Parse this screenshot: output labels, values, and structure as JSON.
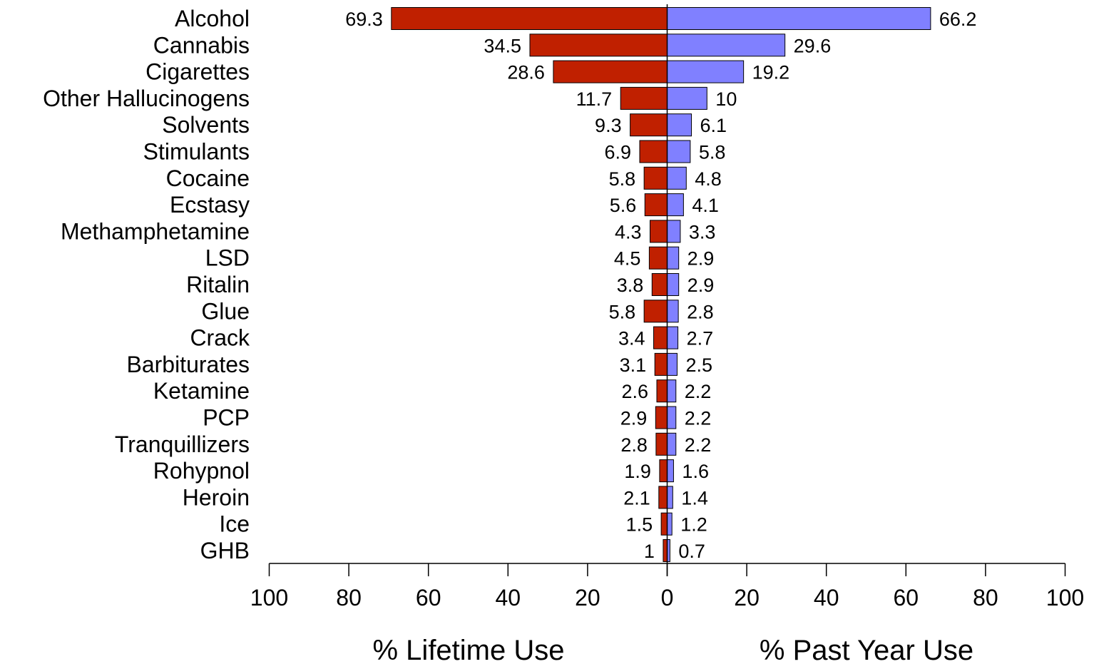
{
  "chart_data": {
    "type": "bar",
    "orientation": "horizontal-back-to-back",
    "categories": [
      "Alcohol",
      "Cannabis",
      "Cigarettes",
      "Other Hallucinogens",
      "Solvents",
      "Stimulants",
      "Cocaine",
      "Ecstasy",
      "Methamphetamine",
      "LSD",
      "Ritalin",
      "Glue",
      "Crack",
      "Barbiturates",
      "Ketamine",
      "PCP",
      "Tranquillizers",
      "Rohypnol",
      "Heroin",
      "Ice",
      "GHB"
    ],
    "series": [
      {
        "values": [
          69.3,
          34.5,
          28.6,
          11.7,
          9.3,
          6.9,
          5.8,
          5.6,
          4.3,
          4.5,
          3.8,
          5.8,
          3.4,
          3.1,
          2.6,
          2.9,
          2.8,
          1.9,
          2.1,
          1.5,
          1
        ],
        "labels": [
          "69.3",
          "34.5",
          "28.6",
          "11.7",
          "9.3",
          "6.9",
          "5.8",
          "5.6",
          "4.3",
          "4.5",
          "3.8",
          "5.8",
          "3.4",
          "3.1",
          "2.6",
          "2.9",
          "2.8",
          "1.9",
          "2.1",
          "1.5",
          "1"
        ],
        "color": "#C02000",
        "side": "left"
      },
      {
        "values": [
          66.2,
          29.6,
          19.2,
          10,
          6.1,
          5.8,
          4.8,
          4.1,
          3.3,
          2.9,
          2.9,
          2.8,
          2.7,
          2.5,
          2.2,
          2.2,
          2.2,
          1.6,
          1.4,
          1.2,
          0.7
        ],
        "labels": [
          "66.2",
          "29.6",
          "19.2",
          "10",
          "6.1",
          "5.8",
          "4.8",
          "4.1",
          "3.3",
          "2.9",
          "2.9",
          "2.8",
          "2.7",
          "2.5",
          "2.2",
          "2.2",
          "2.2",
          "1.6",
          "1.4",
          "1.2",
          "0.7"
        ],
        "color": "#8080FF",
        "side": "right"
      }
    ],
    "xlabel_left": "% Lifetime Use",
    "xlabel_right": "% Past Year Use",
    "xlim": [
      0,
      100
    ],
    "ticks": [
      "100",
      "80",
      "60",
      "40",
      "20",
      "0",
      "20",
      "40",
      "60",
      "80",
      "100"
    ],
    "tick_values": [
      -100,
      -80,
      -60,
      -40,
      -20,
      0,
      20,
      40,
      60,
      80,
      100
    ],
    "grid": false,
    "legend": "none"
  }
}
